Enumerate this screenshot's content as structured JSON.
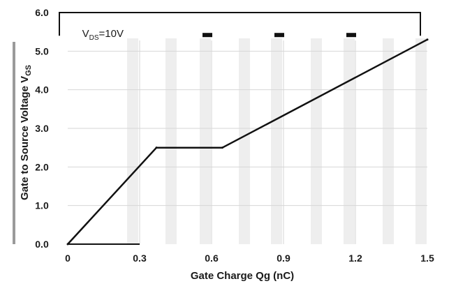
{
  "chart_data": {
    "type": "line",
    "xlabel": "Gate Charge Qg (nC)",
    "ylabel": "Gate to Source Voltage V",
    "ylabel_sub": "GS",
    "xlim": [
      0,
      1.5
    ],
    "ylim": [
      0,
      6
    ],
    "x_ticks": [
      0,
      0.3,
      0.6,
      0.9,
      1.2,
      1.5
    ],
    "x_tick_labels": [
      "0",
      "0.3",
      "0.6",
      "0.9",
      "1.2",
      "1.5"
    ],
    "y_ticks": [
      0,
      1,
      2,
      3,
      4,
      5,
      6
    ],
    "y_tick_labels": [
      "0.0",
      "1.0",
      "2.0",
      "3.0",
      "4.0",
      "5.0",
      "6.0"
    ],
    "grid": true,
    "series": [
      {
        "x": [
          0,
          0.37,
          0.645,
          1.5
        ],
        "y": [
          0,
          2.5,
          2.5,
          5.3
        ]
      }
    ],
    "annotations": [
      {
        "text": "V",
        "sub": "DS",
        "suffix": "=10V",
        "x": 0.06,
        "y": 5.4
      }
    ]
  }
}
